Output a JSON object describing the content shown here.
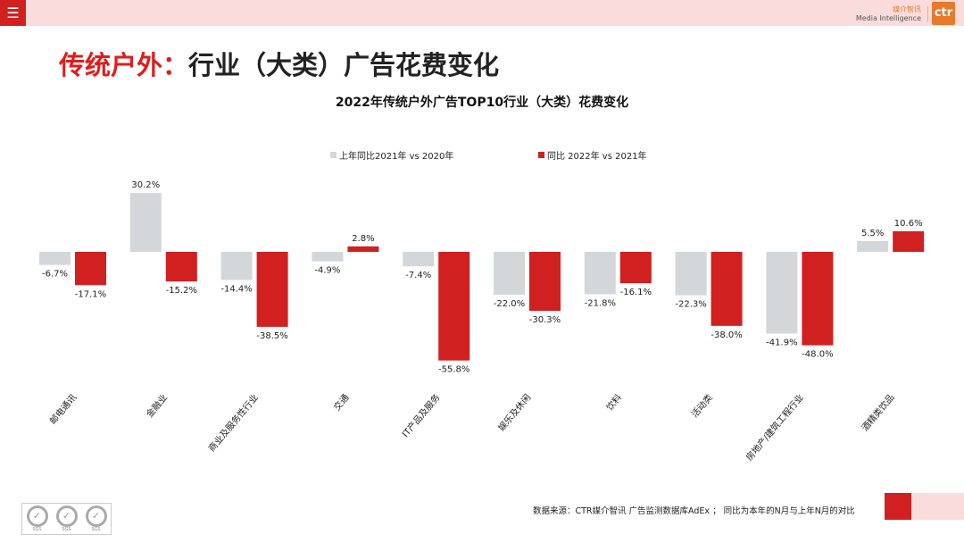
{
  "header": {
    "menu_icon": "hamburger-icon",
    "brand_cn": "媒介智讯",
    "brand_en": "Media Intelligence",
    "logo": "ctr"
  },
  "slide_title": {
    "part1": "传统户外：",
    "part2": "行业（大类）广告花费变化"
  },
  "chart_data": {
    "type": "bar",
    "title": "2022年传统户外广告TOP10行业（大类）花费变化",
    "categories": [
      "邮电通讯",
      "金融业",
      "商业及服务性行业",
      "交通",
      "IT产品及服务",
      "娱乐及休闲",
      "饮料",
      "活动类",
      "房地产/建筑工程行业",
      "酒精类饮品"
    ],
    "series": [
      {
        "name": "上年同比2021年 vs 2020年",
        "color": "#d3d7d9",
        "values": [
          -6.7,
          30.2,
          -14.4,
          -4.9,
          -7.4,
          -22.0,
          -21.8,
          -22.3,
          -41.9,
          5.5
        ]
      },
      {
        "name": "同比 2022年 vs 2021年",
        "color": "#d0201f",
        "values": [
          -17.1,
          -15.2,
          -38.5,
          2.8,
          -55.8,
          -30.3,
          -16.1,
          -38.0,
          -48.0,
          10.6
        ]
      }
    ],
    "value_format": "%",
    "legend": "top-center",
    "grid": false
  },
  "footer": {
    "source": "数据来源：CTR媒介智讯 广告监测数据库AdEx ；  同比为本年的N月与上年N月的对比",
    "cert": "SGS"
  }
}
